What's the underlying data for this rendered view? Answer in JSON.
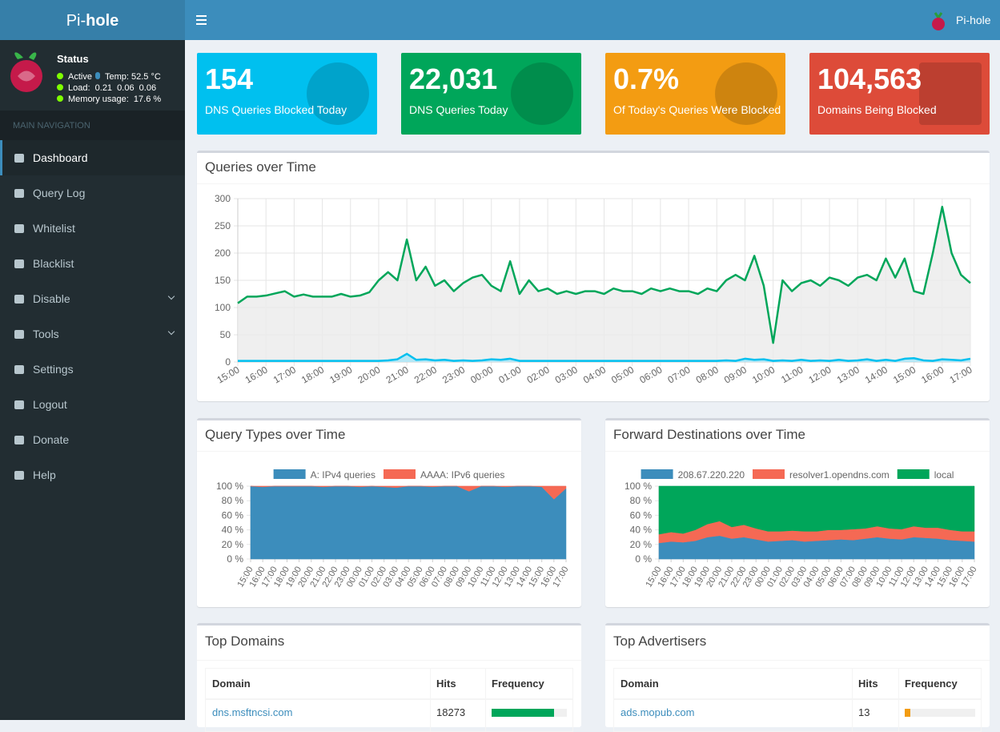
{
  "header": {
    "brand_light": "Pi-",
    "brand_bold": "hole",
    "user": "Pi-hole"
  },
  "sidebar": {
    "status_title": "Status",
    "status": [
      "Active",
      "Temp: 52.5 °C",
      "Load:  0.21  0.06  0.06",
      "Memory usage:  17.6 %"
    ],
    "section": "MAIN NAVIGATION",
    "nav": [
      {
        "label": "Dashboard",
        "active": true
      },
      {
        "label": "Query Log"
      },
      {
        "label": "Whitelist"
      },
      {
        "label": "Blacklist"
      },
      {
        "label": "Disable",
        "submenu": true
      },
      {
        "label": "Tools",
        "submenu": true
      },
      {
        "label": "Settings"
      },
      {
        "label": "Logout"
      },
      {
        "label": "Donate"
      },
      {
        "label": "Help"
      }
    ]
  },
  "stats": [
    {
      "value": "154",
      "label": "DNS Queries Blocked Today",
      "color": "#00c0ef"
    },
    {
      "value": "22,031",
      "label": "DNS Queries Today",
      "color": "#00a65a"
    },
    {
      "value": "0.7%",
      "label": "Of Today's Queries Were Blocked",
      "color": "#f39c12"
    },
    {
      "value": "104,563",
      "label": "Domains Being Blocked",
      "color": "#dd4b39"
    }
  ],
  "chart_data": [
    {
      "type": "line",
      "title": "Queries over Time",
      "grid": true,
      "ylim": [
        0,
        300
      ],
      "yticks": [
        0,
        50,
        100,
        150,
        200,
        250,
        300
      ],
      "categories": [
        "15:00",
        null,
        null,
        "16:00",
        null,
        null,
        "17:00",
        null,
        null,
        "18:00",
        null,
        null,
        "19:00",
        null,
        null,
        "20:00",
        null,
        null,
        "21:00",
        null,
        null,
        "22:00",
        null,
        null,
        "23:00",
        null,
        null,
        "00:00",
        null,
        null,
        "01:00",
        null,
        null,
        "02:00",
        null,
        null,
        "03:00",
        null,
        null,
        "04:00",
        null,
        null,
        "05:00",
        null,
        null,
        "06:00",
        null,
        null,
        "07:00",
        null,
        null,
        "08:00",
        null,
        null,
        "09:00",
        null,
        null,
        "10:00",
        null,
        null,
        "11:00",
        null,
        null,
        "12:00",
        null,
        null,
        "13:00",
        null,
        null,
        "14:00",
        null,
        null,
        "15:00",
        null,
        null,
        "16:00",
        null,
        null,
        "17:00"
      ],
      "series": [
        {
          "color": "#00a65a",
          "fill": "#ebebeb",
          "values": [
            108,
            120,
            120,
            122,
            126,
            130,
            120,
            124,
            120,
            120,
            120,
            125,
            120,
            122,
            128,
            150,
            165,
            150,
            225,
            150,
            175,
            140,
            150,
            130,
            145,
            155,
            160,
            140,
            130,
            185,
            125,
            150,
            130,
            135,
            125,
            130,
            125,
            130,
            130,
            125,
            135,
            130,
            130,
            125,
            135,
            130,
            135,
            130,
            130,
            125,
            135,
            130,
            150,
            160,
            150,
            195,
            140,
            35,
            150,
            130,
            145,
            150,
            140,
            155,
            150,
            140,
            155,
            160,
            150,
            190,
            155,
            190,
            130,
            125,
            200,
            285,
            200,
            160,
            145
          ]
        },
        {
          "color": "#00c0ef",
          "fill": "#a8e6f7",
          "values": [
            2,
            2,
            2,
            2,
            2,
            2,
            2,
            2,
            2,
            2,
            2,
            2,
            2,
            2,
            2,
            2,
            3,
            5,
            15,
            4,
            5,
            3,
            4,
            2,
            3,
            2,
            3,
            5,
            4,
            6,
            2,
            2,
            2,
            2,
            2,
            2,
            2,
            2,
            2,
            2,
            2,
            2,
            2,
            2,
            2,
            2,
            2,
            2,
            2,
            2,
            2,
            2,
            3,
            2,
            6,
            4,
            5,
            2,
            3,
            2,
            4,
            2,
            3,
            2,
            4,
            2,
            3,
            5,
            2,
            4,
            2,
            6,
            7,
            3,
            2,
            5,
            4,
            3,
            6
          ]
        }
      ]
    },
    {
      "type": "stacked-area",
      "title": "Query Types over Time",
      "ylim": [
        0,
        100
      ],
      "yticks": [
        {
          "value": 0,
          "label": "0 %"
        },
        {
          "value": 20,
          "label": "20 %"
        },
        {
          "value": 40,
          "label": "40 %"
        },
        {
          "value": 60,
          "label": "60 %"
        },
        {
          "value": 80,
          "label": "80 %"
        },
        {
          "value": 100,
          "label": "100 %"
        }
      ],
      "categories": [
        "15:00",
        "16:00",
        "17:00",
        "18:00",
        "19:00",
        "20:00",
        "21:00",
        "22:00",
        "23:00",
        "00:00",
        "01:00",
        "02:00",
        "03:00",
        "04:00",
        "05:00",
        "06:00",
        "07:00",
        "08:00",
        "09:00",
        "10:00",
        "11:00",
        "12:00",
        "13:00",
        "14:00",
        "15:00",
        "16:00",
        "17:00"
      ],
      "series": [
        {
          "name": "A: IPv4 queries",
          "color": "#3c8dbc",
          "values": [
            100,
            99,
            100,
            100,
            100,
            100,
            99,
            100,
            100,
            99,
            100,
            99,
            98,
            100,
            100,
            99,
            100,
            100,
            93,
            100,
            100,
            99,
            100,
            100,
            99,
            82,
            97
          ]
        },
        {
          "name": "AAAA: IPv6 queries",
          "color": "#f56954",
          "values": [
            0,
            1,
            0,
            0,
            0,
            0,
            1,
            0,
            0,
            1,
            0,
            1,
            2,
            0,
            0,
            1,
            0,
            0,
            7,
            0,
            0,
            1,
            0,
            0,
            1,
            18,
            3
          ]
        }
      ]
    },
    {
      "type": "stacked-area",
      "title": "Forward Destinations over Time",
      "ylim": [
        0,
        100
      ],
      "yticks": [
        {
          "value": 0,
          "label": "0 %"
        },
        {
          "value": 20,
          "label": "20 %"
        },
        {
          "value": 40,
          "label": "40 %"
        },
        {
          "value": 60,
          "label": "60 %"
        },
        {
          "value": 80,
          "label": "80 %"
        },
        {
          "value": 100,
          "label": "100 %"
        }
      ],
      "categories": [
        "15:00",
        "16:00",
        "17:00",
        "18:00",
        "19:00",
        "20:00",
        "21:00",
        "22:00",
        "23:00",
        "00:00",
        "01:00",
        "02:00",
        "03:00",
        "04:00",
        "05:00",
        "06:00",
        "07:00",
        "08:00",
        "09:00",
        "10:00",
        "11:00",
        "12:00",
        "13:00",
        "14:00",
        "15:00",
        "16:00",
        "17:00"
      ],
      "series": [
        {
          "name": "208.67.220.220",
          "color": "#3c8dbc",
          "values": [
            22,
            24,
            23,
            25,
            30,
            32,
            28,
            30,
            27,
            24,
            25,
            26,
            24,
            25,
            26,
            27,
            26,
            28,
            30,
            28,
            27,
            30,
            29,
            28,
            26,
            25,
            24
          ]
        },
        {
          "name": "resolver1.opendns.com",
          "color": "#f56954",
          "values": [
            12,
            13,
            12,
            15,
            18,
            20,
            16,
            17,
            15,
            14,
            13,
            13,
            14,
            13,
            14,
            13,
            15,
            14,
            15,
            14,
            14,
            15,
            14,
            15,
            14,
            13,
            14
          ]
        },
        {
          "name": "local",
          "color": "#00a65a",
          "values": [
            66,
            63,
            65,
            60,
            52,
            48,
            56,
            53,
            58,
            62,
            62,
            61,
            62,
            62,
            60,
            60,
            59,
            58,
            55,
            58,
            59,
            55,
            57,
            57,
            60,
            62,
            62
          ]
        }
      ]
    }
  ],
  "tables": [
    {
      "title": "Top Domains",
      "columns": [
        "Domain",
        "Hits",
        "Frequency"
      ],
      "bar_color": "#00a65a",
      "rows": [
        {
          "domain": "dns.msftncsi.com",
          "hits": 18273,
          "frequency": 83
        }
      ]
    },
    {
      "title": "Top Advertisers",
      "columns": [
        "Domain",
        "Hits",
        "Frequency"
      ],
      "bar_color": "#f39c12",
      "rows": [
        {
          "domain": "ads.mopub.com",
          "hits": 13,
          "frequency": 8
        }
      ]
    }
  ]
}
